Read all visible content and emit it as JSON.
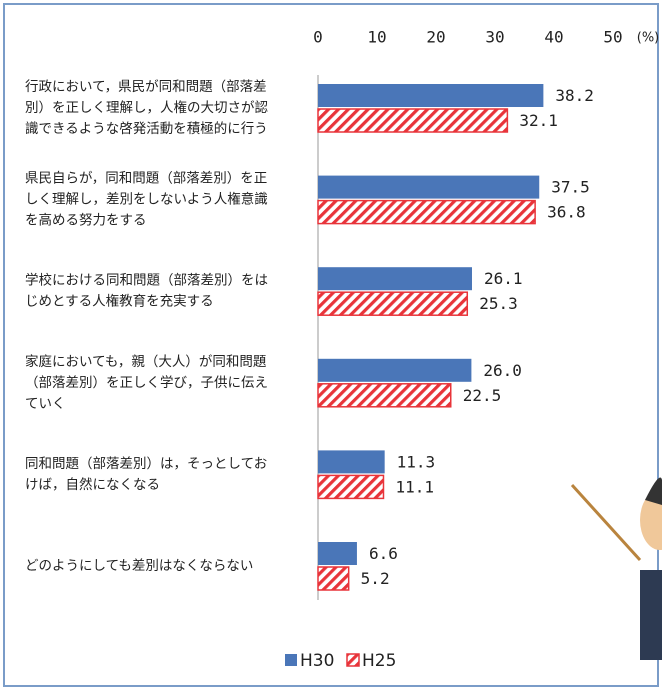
{
  "chart_data": {
    "type": "bar",
    "orientation": "horizontal",
    "categories": [
      [
        "行政において，県民が同和問題（部落差",
        "別）を正しく理解し，人権の大切さが認",
        "識できるような啓発活動を積極的に行う"
      ],
      [
        "県民自らが，同和問題（部落差別）を正",
        "しく理解し，差別をしないよう人権意識",
        "を高める努力をする"
      ],
      [
        "学校における同和問題（部落差別）をは",
        "じめとする人権教育を充実する"
      ],
      [
        "家庭においても，親（大人）が同和問題",
        "（部落差別）を正しく学び，子供に伝え",
        "ていく"
      ],
      [
        "同和問題（部落差別）は，そっとしてお",
        "けば，自然になくなる"
      ],
      [
        "どのようにしても差別はなくならない"
      ]
    ],
    "series": [
      {
        "name": "H30",
        "color": "#4a76b8",
        "pattern": "solid",
        "values": [
          38.2,
          37.5,
          26.1,
          26.0,
          11.3,
          6.6
        ],
        "value_labels": [
          "38.2",
          "37.5",
          "26.1",
          "26.0",
          "11.3",
          "6.6"
        ]
      },
      {
        "name": "H25",
        "color": "#e8343a",
        "pattern": "hatch",
        "values": [
          32.1,
          36.8,
          25.3,
          22.5,
          11.1,
          5.2
        ],
        "value_labels": [
          "32.1",
          "36.8",
          "25.3",
          "22.5",
          "11.1",
          "5.2"
        ]
      }
    ],
    "xlim": [
      0,
      50
    ],
    "xticks": [
      0,
      10,
      20,
      30,
      40,
      50
    ],
    "xlabel": "(%)",
    "legend": "bottom"
  }
}
